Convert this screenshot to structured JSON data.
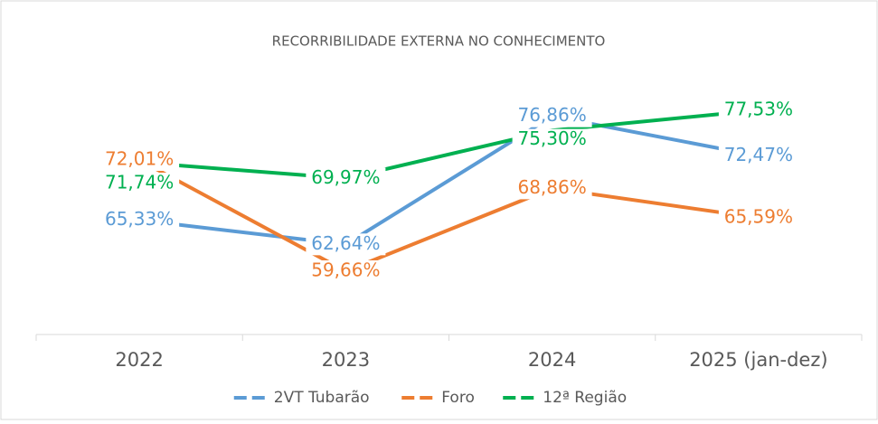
{
  "chart_data": {
    "type": "line",
    "title": "RECORRIBILIDADE EXTERNA NO CONHECIMENTO",
    "categories": [
      "2022",
      "2023",
      "2024",
      "2025 (jan-dez)"
    ],
    "series": [
      {
        "name": "2VT Tubarão",
        "color": "#5b9bd5",
        "values": [
          65.33,
          62.64,
          76.86,
          72.47
        ],
        "value_labels": [
          "65,33%",
          "62,64%",
          "76,86%",
          "72,47%"
        ]
      },
      {
        "name": "Foro",
        "color": "#ed7d31",
        "values": [
          72.01,
          59.66,
          68.86,
          65.59
        ],
        "value_labels": [
          "72,01%",
          "59,66%",
          "68,86%",
          "65,59%"
        ]
      },
      {
        "name": "12ª Região",
        "color": "#00b050",
        "values": [
          71.74,
          69.97,
          75.3,
          77.53
        ],
        "value_labels": [
          "71,74%",
          "69,97%",
          "75,30%",
          "77,53%"
        ]
      }
    ]
  }
}
